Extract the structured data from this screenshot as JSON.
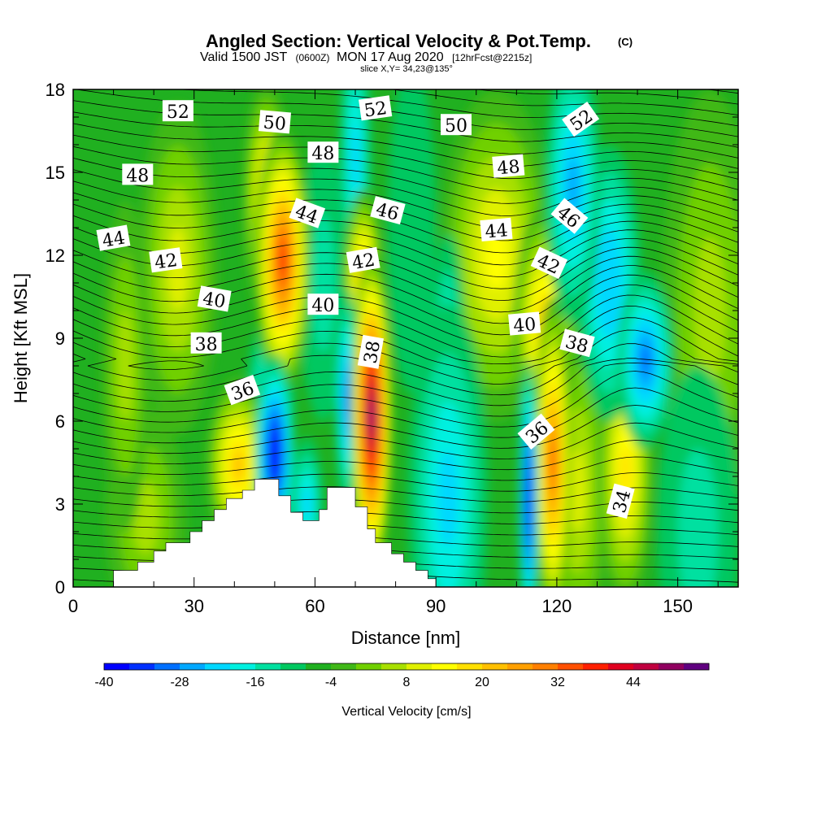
{
  "chart_data": {
    "type": "heatmap",
    "title": "Angled Section: Vertical Velocity & Pot.Temp.",
    "title_unit": "(C)",
    "subtitle_main": "Valid 1500 JST",
    "subtitle_utc": "(0600Z)",
    "subtitle_date": "MON 17 Aug 2020",
    "subtitle_fcst": "[12hrFcst@2215z]",
    "slice": "slice X,Y= 34,23@135°",
    "xlabel": "Distance [nm]",
    "ylabel": "Height [Kft MSL]",
    "xlim": [
      0,
      165
    ],
    "ylim": [
      0,
      18
    ],
    "x_ticks": [
      0,
      30,
      60,
      90,
      120,
      150
    ],
    "y_ticks": [
      0,
      3,
      6,
      9,
      12,
      15,
      18
    ],
    "x_minor_step": 10,
    "y_minor_step": 1,
    "colorbar": {
      "label": "Vertical Velocity [cm/s]",
      "min": -40,
      "max": 52,
      "step": 4,
      "tick_labels": [
        "-40",
        "-28",
        "-16",
        "-4",
        "8",
        "20",
        "32",
        "44"
      ],
      "tick_values": [
        -40,
        -28,
        -16,
        -4,
        8,
        20,
        32,
        44
      ],
      "colors": [
        "#0000ff",
        "#0030ff",
        "#0070ff",
        "#00a8ff",
        "#00d8ff",
        "#00f0e0",
        "#00e0a0",
        "#00c860",
        "#20b020",
        "#40b818",
        "#70d000",
        "#a8e000",
        "#e0f000",
        "#ffff00",
        "#ffe000",
        "#ffc000",
        "#ffa000",
        "#ff8000",
        "#ff5000",
        "#ff2000",
        "#e00020",
        "#c00040",
        "#900060",
        "#600080"
      ]
    },
    "background_value": -6,
    "velocity_cells": [
      {
        "x": 50,
        "y": 4.8,
        "sx": 2.5,
        "sy": 1.8,
        "v": -40
      },
      {
        "x": 49,
        "y": 6.8,
        "sx": 3,
        "sy": 1.5,
        "v": -20
      },
      {
        "x": 58,
        "y": 3.0,
        "sx": 2,
        "sy": 1.2,
        "v": -22
      },
      {
        "x": 41,
        "y": 4.4,
        "sx": 4,
        "sy": 1.6,
        "v": 22
      },
      {
        "x": 52,
        "y": 11.8,
        "sx": 3.5,
        "sy": 2.4,
        "v": 36
      },
      {
        "x": 48,
        "y": 14.0,
        "sx": 3,
        "sy": 2.2,
        "v": 16
      },
      {
        "x": 68,
        "y": 6.8,
        "sx": 1.5,
        "sy": 2.0,
        "v": -30
      },
      {
        "x": 74,
        "y": 6.2,
        "sx": 2.6,
        "sy": 3.0,
        "v": 52
      },
      {
        "x": 72,
        "y": 10.8,
        "sx": 2.5,
        "sy": 1.8,
        "v": 26
      },
      {
        "x": 70,
        "y": 15.5,
        "sx": 2,
        "sy": 2.5,
        "v": -22
      },
      {
        "x": 93,
        "y": 3.2,
        "sx": 5,
        "sy": 3.5,
        "v": -22
      },
      {
        "x": 93,
        "y": 8.8,
        "sx": 2,
        "sy": 2.0,
        "v": -18
      },
      {
        "x": 105,
        "y": 12.0,
        "sx": 7,
        "sy": 3.0,
        "v": 12
      },
      {
        "x": 113,
        "y": 3.2,
        "sx": 1.2,
        "sy": 2.5,
        "v": -40
      },
      {
        "x": 119,
        "y": 4.5,
        "sx": 2.4,
        "sy": 3.0,
        "v": 32
      },
      {
        "x": 117,
        "y": 9.4,
        "sx": 4,
        "sy": 2.2,
        "v": 20
      },
      {
        "x": 124,
        "y": 14.5,
        "sx": 3.5,
        "sy": 2.5,
        "v": -26
      },
      {
        "x": 133,
        "y": 11.0,
        "sx": 4,
        "sy": 2.5,
        "v": -24
      },
      {
        "x": 142,
        "y": 8.2,
        "sx": 3.5,
        "sy": 1.6,
        "v": -30
      },
      {
        "x": 137,
        "y": 4.2,
        "sx": 3.5,
        "sy": 2.5,
        "v": 16
      },
      {
        "x": 125,
        "y": 3.5,
        "sx": 4,
        "sy": 3.0,
        "v": 8
      },
      {
        "x": 26,
        "y": 11.5,
        "sx": 5,
        "sy": 3.0,
        "v": 8
      },
      {
        "x": 13,
        "y": 8.0,
        "sx": 3,
        "sy": 3.0,
        "v": 6
      },
      {
        "x": 18,
        "y": 2.5,
        "sx": 5,
        "sy": 2.0,
        "v": 4
      },
      {
        "x": 155,
        "y": 2.0,
        "sx": 5,
        "sy": 3.0,
        "v": -14
      },
      {
        "x": 158,
        "y": 10.0,
        "sx": 6,
        "sy": 4.0,
        "v": 6
      },
      {
        "x": 62,
        "y": 11.0,
        "sx": 3,
        "sy": 2.5,
        "v": -14
      },
      {
        "x": 84,
        "y": 13.0,
        "sx": 3,
        "sy": 3.0,
        "v": -12
      }
    ],
    "terrain": [
      [
        0,
        0
      ],
      [
        10,
        0
      ],
      [
        10,
        0.6
      ],
      [
        16,
        0.6
      ],
      [
        16,
        0.9
      ],
      [
        20,
        0.9
      ],
      [
        20,
        1.3
      ],
      [
        23,
        1.3
      ],
      [
        23,
        1.6
      ],
      [
        29,
        1.6
      ],
      [
        29,
        2.0
      ],
      [
        32,
        2.0
      ],
      [
        32,
        2.4
      ],
      [
        35,
        2.4
      ],
      [
        35,
        2.8
      ],
      [
        38,
        2.8
      ],
      [
        38,
        3.2
      ],
      [
        42,
        3.2
      ],
      [
        42,
        3.5
      ],
      [
        45,
        3.5
      ],
      [
        45,
        3.9
      ],
      [
        51,
        3.9
      ],
      [
        51,
        3.3
      ],
      [
        54,
        3.3
      ],
      [
        54,
        2.7
      ],
      [
        57,
        2.7
      ],
      [
        57,
        2.4
      ],
      [
        61,
        2.4
      ],
      [
        61,
        2.8
      ],
      [
        63,
        2.8
      ],
      [
        63,
        3.6
      ],
      [
        70,
        3.6
      ],
      [
        70,
        2.9
      ],
      [
        73,
        2.9
      ],
      [
        73,
        2.1
      ],
      [
        75,
        2.1
      ],
      [
        75,
        1.6
      ],
      [
        79,
        1.6
      ],
      [
        79,
        1.2
      ],
      [
        82,
        1.2
      ],
      [
        82,
        0.9
      ],
      [
        85,
        0.9
      ],
      [
        85,
        0.6
      ],
      [
        88,
        0.6
      ],
      [
        88,
        0.3
      ],
      [
        90,
        0.3
      ],
      [
        90,
        0
      ],
      [
        165,
        0
      ]
    ],
    "contour_labels": [
      {
        "text": "52",
        "x": 26,
        "y": 17.2,
        "angle": 0
      },
      {
        "text": "50",
        "x": 50,
        "y": 16.8,
        "angle": 5
      },
      {
        "text": "52",
        "x": 75,
        "y": 17.3,
        "angle": -8
      },
      {
        "text": "50",
        "x": 95,
        "y": 16.7,
        "angle": 0
      },
      {
        "text": "52",
        "x": 126,
        "y": 16.9,
        "angle": -35
      },
      {
        "text": "48",
        "x": 16,
        "y": 14.9,
        "angle": 0
      },
      {
        "text": "48",
        "x": 62,
        "y": 15.7,
        "angle": 0
      },
      {
        "text": "48",
        "x": 108,
        "y": 15.2,
        "angle": -5
      },
      {
        "text": "46",
        "x": 78,
        "y": 13.6,
        "angle": 15
      },
      {
        "text": "46",
        "x": 123,
        "y": 13.4,
        "angle": 40
      },
      {
        "text": "44",
        "x": 10,
        "y": 12.6,
        "angle": -10
      },
      {
        "text": "44",
        "x": 58,
        "y": 13.5,
        "angle": 20
      },
      {
        "text": "44",
        "x": 105,
        "y": 12.9,
        "angle": -5
      },
      {
        "text": "42",
        "x": 23,
        "y": 11.8,
        "angle": -8
      },
      {
        "text": "42",
        "x": 72,
        "y": 11.8,
        "angle": -10
      },
      {
        "text": "42",
        "x": 118,
        "y": 11.7,
        "angle": 25
      },
      {
        "text": "40",
        "x": 35,
        "y": 10.4,
        "angle": 10
      },
      {
        "text": "40",
        "x": 62,
        "y": 10.2,
        "angle": 0
      },
      {
        "text": "40",
        "x": 112,
        "y": 9.5,
        "angle": -5
      },
      {
        "text": "38",
        "x": 33,
        "y": 8.8,
        "angle": 0
      },
      {
        "text": "38",
        "x": 74,
        "y": 8.5,
        "angle": -80
      },
      {
        "text": "38",
        "x": 125,
        "y": 8.8,
        "angle": 15
      },
      {
        "text": "36",
        "x": 42,
        "y": 7.1,
        "angle": -20
      },
      {
        "text": "36",
        "x": 115,
        "y": 5.6,
        "angle": -40
      },
      {
        "text": "34",
        "x": 136,
        "y": 3.1,
        "angle": -75
      }
    ]
  }
}
